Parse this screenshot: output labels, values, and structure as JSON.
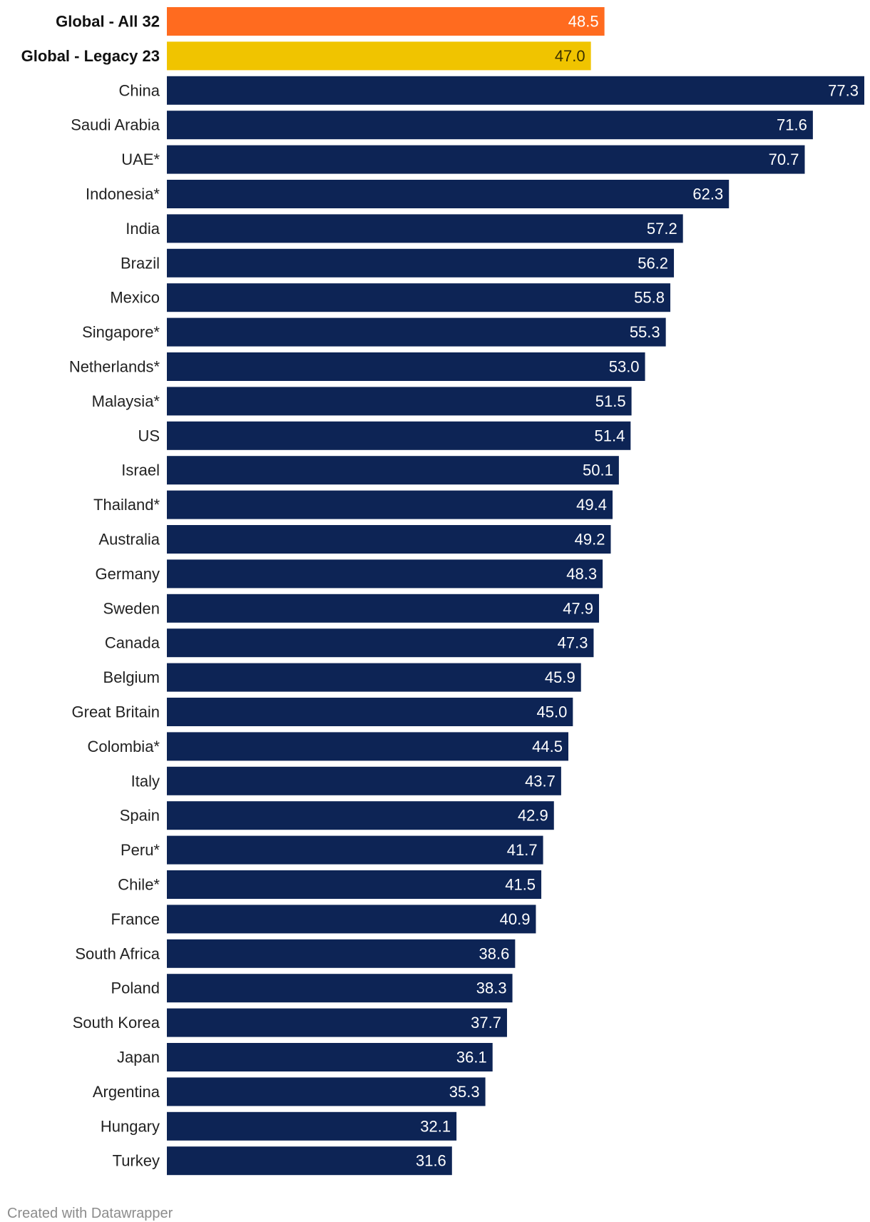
{
  "chart_data": {
    "type": "bar",
    "orientation": "horizontal",
    "title": "",
    "xlabel": "",
    "ylabel": "",
    "xlim": [
      0,
      77.3
    ],
    "grid": false,
    "legend": "none",
    "categories": [
      "Global - All 32",
      "Global - Legacy 23",
      "China",
      "Saudi Arabia",
      "UAE*",
      "Indonesia*",
      "India",
      "Brazil",
      "Mexico",
      "Singapore*",
      "Netherlands*",
      "Malaysia*",
      "US",
      "Israel",
      "Thailand*",
      "Australia",
      "Germany",
      "Sweden",
      "Canada",
      "Belgium",
      "Great Britain",
      "Colombia*",
      "Italy",
      "Spain",
      "Peru*",
      "Chile*",
      "France",
      "South Africa",
      "Poland",
      "South Korea",
      "Japan",
      "Argentina",
      "Hungary",
      "Turkey"
    ],
    "values": [
      48.5,
      47.0,
      77.3,
      71.6,
      70.7,
      62.3,
      57.2,
      56.2,
      55.8,
      55.3,
      53.0,
      51.5,
      51.4,
      50.1,
      49.4,
      49.2,
      48.3,
      47.9,
      47.3,
      45.9,
      45.0,
      44.5,
      43.7,
      42.9,
      41.7,
      41.5,
      40.9,
      38.6,
      38.3,
      37.7,
      36.1,
      35.3,
      32.1,
      31.6
    ],
    "value_labels": [
      "48.5",
      "47.0",
      "77.3",
      "71.6",
      "70.7",
      "62.3",
      "57.2",
      "56.2",
      "55.8",
      "55.3",
      "53.0",
      "51.5",
      "51.4",
      "50.1",
      "49.4",
      "49.2",
      "48.3",
      "47.9",
      "47.3",
      "45.9",
      "45.0",
      "44.5",
      "43.7",
      "42.9",
      "41.7",
      "41.5",
      "40.9",
      "38.6",
      "38.3",
      "37.7",
      "36.1",
      "35.3",
      "32.1",
      "31.6"
    ],
    "bold_categories": [
      "Global - All 32",
      "Global - Legacy 23"
    ],
    "highlight_colors": {
      "Global - All 32": "#ff6b1f",
      "Global - Legacy 23": "#f0c400"
    },
    "highlight_label_colors": {
      "Global - All 32": "#ffffff",
      "Global - Legacy 23": "#3a3000"
    },
    "default_color": "#0d2455",
    "default_label_color": "#ffffff"
  },
  "footer": {
    "credit": "Created with Datawrapper"
  }
}
